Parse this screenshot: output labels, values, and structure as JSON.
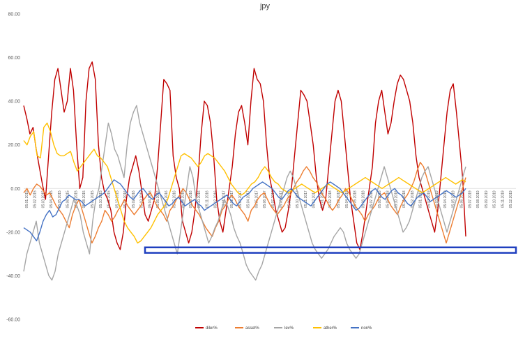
{
  "chart_data": {
    "type": "line",
    "title": "jpy",
    "xlabel": "",
    "ylabel": "",
    "ylim": [
      -60,
      80
    ],
    "y_ticks": [
      "80.00",
      "60.00",
      "40.00",
      "20.00",
      "0.00",
      "-20.00",
      "-40.00",
      "-60.00"
    ],
    "y_tick_values": [
      80,
      60,
      40,
      20,
      0,
      -20,
      -40,
      -60
    ],
    "grid": false,
    "legend_position": "bottom",
    "x_ticks": [
      "05.01.2015",
      "05.02.2015",
      "05.03.2015",
      "05.04.2015",
      "05.05.2015",
      "05.06.2015",
      "05.07.2015",
      "05.08.2015",
      "05.09.2015",
      "05.10.2015",
      "05.11.2015",
      "05.12.2015",
      "05.01.2016",
      "05.02.2016",
      "05.03.2016",
      "05.04.2016",
      "05.05.2016",
      "05.06.2016",
      "05.07.2016",
      "05.08.2016",
      "05.09.2016",
      "05.10.2016",
      "05.11.2016",
      "05.12.2016",
      "05.01.2017",
      "05.02.2017",
      "05.03.2017",
      "05.04.2017",
      "05.05.2017",
      "05.06.2017",
      "05.07.2017",
      "05.08.2017",
      "05.09.2017",
      "05.10.2017",
      "05.11.2017",
      "05.12.2017",
      "05.01.2018",
      "05.02.2018",
      "05.03.2018",
      "05.04.2018",
      "05.05.2018",
      "05.06.2018",
      "05.07.2018",
      "05.08.2018",
      "05.09.2018",
      "05.10.2018",
      "05.11.2018",
      "05.12.2018",
      "05.01.2019",
      "05.02.2019",
      "05.03.2019",
      "05.04.2019",
      "05.05.2019",
      "05.06.2019",
      "05.07.2019",
      "05.08.2019",
      "05.09.2019",
      "05.10.2019",
      "05.11.2019",
      "05.12.2019"
    ],
    "series": [
      {
        "name": "diler%",
        "color": "#c00000",
        "values": [
          38,
          32,
          25,
          28,
          18,
          10,
          2,
          -5,
          15,
          35,
          50,
          55,
          45,
          35,
          40,
          55,
          45,
          20,
          0,
          5,
          40,
          55,
          58,
          50,
          20,
          5,
          -2,
          -5,
          -10,
          -20,
          -25,
          -28,
          -20,
          -5,
          5,
          10,
          15,
          8,
          -2,
          -12,
          -15,
          -10,
          -5,
          10,
          30,
          50,
          48,
          45,
          15,
          5,
          0,
          -15,
          -20,
          -25,
          -20,
          -10,
          5,
          25,
          40,
          38,
          30,
          15,
          -5,
          -15,
          -20,
          -10,
          0,
          10,
          25,
          35,
          38,
          30,
          20,
          40,
          55,
          50,
          48,
          40,
          20,
          5,
          -2,
          -10,
          -15,
          -20,
          -18,
          -10,
          0,
          15,
          30,
          45,
          43,
          40,
          30,
          20,
          5,
          -5,
          -10,
          -5,
          10,
          25,
          40,
          45,
          40,
          25,
          10,
          -5,
          -15,
          -25,
          -28,
          -20,
          -10,
          0,
          10,
          30,
          40,
          45,
          35,
          25,
          30,
          40,
          48,
          52,
          50,
          45,
          40,
          30,
          15,
          5,
          0,
          -5,
          -10,
          -15,
          -20,
          -10,
          5,
          20,
          35,
          45,
          48,
          35,
          20,
          5,
          -22
        ]
      },
      {
        "name": "asset%",
        "color": "#ed7d31",
        "values": [
          -2,
          0,
          -3,
          0,
          2,
          1,
          -1,
          -3,
          -2,
          -5,
          -8,
          -10,
          -12,
          -15,
          -18,
          -12,
          -8,
          -5,
          -10,
          -15,
          -20,
          -25,
          -22,
          -18,
          -15,
          -10,
          -12,
          -15,
          -13,
          -10,
          -8,
          -5,
          -8,
          -10,
          -12,
          -10,
          -8,
          -5,
          -3,
          -2,
          -5,
          -8,
          -10,
          -12,
          -15,
          -10,
          -8,
          -5,
          -3,
          0,
          -2,
          -5,
          -8,
          -10,
          -12,
          -15,
          -18,
          -20,
          -22,
          -18,
          -15,
          -10,
          -8,
          -5,
          -3,
          -5,
          -8,
          -10,
          -12,
          -15,
          -10,
          -8,
          -5,
          -3,
          -2,
          -5,
          -8,
          -10,
          -12,
          -10,
          -8,
          -5,
          -3,
          0,
          3,
          5,
          8,
          10,
          8,
          5,
          3,
          0,
          -3,
          -5,
          -8,
          -10,
          -8,
          -5,
          -3,
          0,
          -2,
          -5,
          -8,
          -10,
          -12,
          -15,
          -12,
          -10,
          -8,
          -5,
          -3,
          -2,
          -5,
          -8,
          -10,
          -12,
          -8,
          -5,
          -3,
          0,
          3,
          8,
          12,
          10,
          5,
          0,
          -5,
          -10,
          -15,
          -20,
          -25,
          -20,
          -15,
          -10,
          -5,
          0,
          5
        ]
      },
      {
        "name": "lev%",
        "color": "#a5a5a5",
        "values": [
          -38,
          -30,
          -25,
          -20,
          -15,
          -25,
          -30,
          -35,
          -40,
          -42,
          -38,
          -30,
          -25,
          -20,
          -15,
          -10,
          -5,
          -8,
          -12,
          -20,
          -25,
          -30,
          -15,
          -5,
          0,
          10,
          20,
          30,
          25,
          18,
          15,
          10,
          5,
          20,
          30,
          35,
          38,
          30,
          25,
          20,
          15,
          10,
          5,
          0,
          -5,
          -10,
          -15,
          -20,
          -25,
          -30,
          -20,
          -10,
          0,
          10,
          5,
          -5,
          -10,
          -15,
          -20,
          -25,
          -22,
          -18,
          -15,
          -10,
          -5,
          -8,
          -12,
          -18,
          -22,
          -25,
          -30,
          -35,
          -38,
          -40,
          -42,
          -38,
          -35,
          -30,
          -25,
          -20,
          -15,
          -10,
          -5,
          0,
          5,
          8,
          5,
          0,
          -5,
          -10,
          -15,
          -20,
          -25,
          -28,
          -30,
          -32,
          -30,
          -28,
          -25,
          -22,
          -20,
          -18,
          -20,
          -25,
          -28,
          -30,
          -32,
          -30,
          -25,
          -20,
          -15,
          -10,
          -5,
          0,
          5,
          10,
          5,
          0,
          -5,
          -10,
          -15,
          -20,
          -18,
          -15,
          -10,
          -5,
          0,
          5,
          8,
          10,
          5,
          0,
          -5,
          -10,
          -15,
          -20,
          -15,
          -10,
          -5,
          0,
          5,
          10
        ]
      },
      {
        "name": "ather%",
        "color": "#ffc000",
        "values": [
          22,
          20,
          24,
          26,
          15,
          14,
          28,
          30,
          26,
          20,
          16,
          15,
          15,
          16,
          17,
          12,
          8,
          10,
          12,
          14,
          16,
          18,
          15,
          14,
          12,
          10,
          5,
          0,
          -5,
          -10,
          -15,
          -18,
          -20,
          -22,
          -25,
          -24,
          -22,
          -20,
          -18,
          -15,
          -12,
          -10,
          -8,
          -5,
          0,
          5,
          10,
          15,
          16,
          15,
          14,
          12,
          10,
          12,
          15,
          16,
          15,
          14,
          12,
          10,
          8,
          5,
          2,
          0,
          -2,
          -3,
          -2,
          0,
          2,
          3,
          5,
          8,
          10,
          8,
          5,
          3,
          2,
          0,
          -1,
          -2,
          -1,
          0,
          1,
          2,
          1,
          0,
          -1,
          -2,
          -1,
          0,
          1,
          2,
          1,
          0,
          -1,
          -2,
          -1,
          0,
          1,
          2,
          3,
          4,
          5,
          4,
          3,
          2,
          1,
          0,
          1,
          2,
          3,
          4,
          5,
          4,
          3,
          2,
          1,
          0,
          -1,
          -2,
          -1,
          0,
          1,
          2,
          3,
          4,
          5,
          4,
          3,
          2,
          3,
          4,
          3
        ]
      },
      {
        "name": "non%",
        "color": "#4472c4",
        "values": [
          -18,
          -19,
          -20,
          -22,
          -24,
          -20,
          -15,
          -12,
          -10,
          -13,
          -12,
          -9,
          -6,
          -5,
          -3,
          -4,
          -5,
          -5,
          -6,
          -8,
          -7,
          -6,
          -5,
          -4,
          -3,
          -2,
          0,
          2,
          4,
          3,
          2,
          0,
          -2,
          -4,
          -5,
          -3,
          -1,
          0,
          -2,
          -4,
          -5,
          -3,
          -2,
          -4,
          -6,
          -8,
          -7,
          -5,
          -4,
          -6,
          -8,
          -7,
          -6,
          -5,
          -7,
          -8,
          -10,
          -9,
          -8,
          -7,
          -6,
          -5,
          -4,
          -3,
          -5,
          -7,
          -8,
          -6,
          -4,
          -3,
          -2,
          0,
          1,
          2,
          3,
          2,
          1,
          0,
          -2,
          -4,
          -5,
          -3,
          -1,
          0,
          -2,
          -4,
          -5,
          -6,
          -7,
          -8,
          -6,
          -4,
          -2,
          0,
          2,
          3,
          2,
          1,
          0,
          -2,
          -4,
          -6,
          -8,
          -10,
          -9,
          -7,
          -5,
          -3,
          -1,
          0,
          -2,
          -4,
          -5,
          -3,
          -1,
          0,
          -2,
          -3,
          -5,
          -7,
          -8,
          -6,
          -4,
          -3,
          -2,
          -4,
          -6,
          -5,
          -4,
          -3,
          -2,
          -1,
          -2,
          -3,
          -4,
          -3,
          -2,
          0
        ]
      }
    ],
    "annotation_box": {
      "color": "#1f3fbf",
      "y_from": -27,
      "y_to": -29.5
    }
  }
}
